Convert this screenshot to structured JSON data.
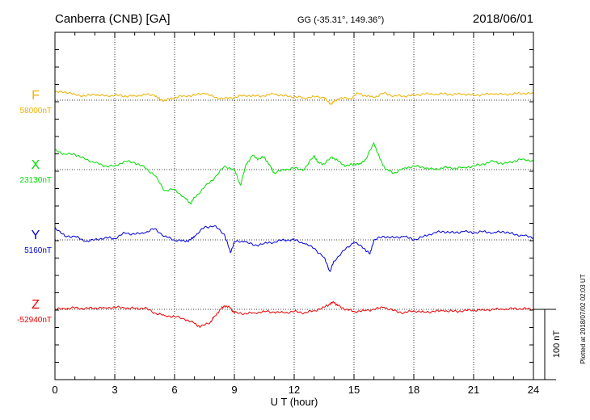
{
  "header": {
    "station": "Canberra (CNB)  [GA]",
    "coords": "GG (-35.31°, 149.36°)",
    "date": "2018/06/01"
  },
  "side_note": "Plotted at 2018/07/02 02:03 UT",
  "chart_data": {
    "type": "line",
    "xlabel": "U T (hour)",
    "xlim": [
      0,
      24
    ],
    "xticks": [
      "0",
      "3",
      "6",
      "9",
      "12",
      "15",
      "18",
      "21",
      "24"
    ],
    "scale_bar": "100 nT",
    "grid": true,
    "series": [
      {
        "name": "F",
        "baseline_label": "58000nT",
        "color": "#f0b000",
        "x": [
          0,
          0.5,
          1,
          1.5,
          2,
          2.5,
          3,
          3.5,
          4,
          4.5,
          5,
          5.3,
          5.6,
          6,
          6.5,
          7,
          7.5,
          8,
          8.5,
          9,
          9.5,
          10,
          10.5,
          11,
          11.5,
          12,
          12.5,
          13,
          13.5,
          13.8,
          14,
          14.3,
          14.8,
          15.2,
          15.6,
          16,
          16.5,
          17,
          17.5,
          18,
          18.5,
          19,
          19.5,
          20,
          20.5,
          21,
          21.5,
          22,
          22.5,
          23,
          23.5,
          24
        ],
        "values": [
          11,
          12,
          8,
          6,
          8,
          6,
          7,
          6,
          6,
          8,
          7,
          0,
          0,
          4,
          6,
          7,
          10,
          4,
          2,
          4,
          7,
          6,
          6,
          9,
          6,
          5,
          3,
          5,
          4,
          -6,
          -2,
          3,
          2,
          10,
          6,
          4,
          10,
          6,
          6,
          7,
          9,
          8,
          9,
          8,
          9,
          7,
          8,
          9,
          8,
          9,
          10,
          9
        ]
      },
      {
        "name": "X",
        "baseline_label": "23130nT",
        "color": "#00dd00",
        "x": [
          0,
          0.5,
          1,
          1.5,
          2,
          2.5,
          3,
          3.5,
          4,
          4.5,
          5,
          5.5,
          6,
          6.5,
          6.8,
          7,
          7.5,
          8,
          8.5,
          9,
          9.3,
          9.6,
          9.9,
          10.2,
          10.5,
          10.8,
          11,
          11.5,
          12,
          12.5,
          13,
          13.2,
          13.5,
          13.9,
          14.2,
          14.6,
          15,
          15.3,
          15.6,
          16,
          16.3,
          16.6,
          17,
          17.5,
          18,
          18.5,
          19,
          19.5,
          20,
          20.5,
          21,
          21.5,
          22,
          22.5,
          23,
          23.5,
          24
        ],
        "values": [
          28,
          22,
          22,
          15,
          10,
          5,
          5,
          12,
          10,
          3,
          -8,
          -30,
          -28,
          -40,
          -48,
          -40,
          -25,
          -12,
          5,
          0,
          -22,
          8,
          20,
          15,
          18,
          5,
          -5,
          0,
          2,
          0,
          20,
          10,
          8,
          18,
          12,
          5,
          8,
          8,
          15,
          38,
          15,
          0,
          -5,
          2,
          5,
          3,
          0,
          3,
          2,
          3,
          5,
          8,
          12,
          8,
          12,
          15,
          12
        ]
      },
      {
        "name": "Y",
        "baseline_label": "5160nT",
        "color": "#0000dd",
        "x": [
          0,
          0.5,
          1,
          1.5,
          2,
          2.5,
          3,
          3.5,
          4,
          4.5,
          5,
          5.5,
          6,
          6.5,
          6.8,
          7,
          7.5,
          8,
          8.5,
          8.8,
          9,
          9.5,
          10,
          10.5,
          11,
          11.5,
          12,
          12.5,
          13,
          13.5,
          13.8,
          14,
          14.5,
          15,
          15.5,
          15.8,
          16,
          16.5,
          17,
          17.5,
          18,
          18.5,
          19,
          19.5,
          20,
          20.5,
          21,
          21.5,
          22,
          22.5,
          23,
          23.5,
          24
        ],
        "values": [
          18,
          5,
          5,
          -2,
          0,
          3,
          2,
          10,
          8,
          10,
          16,
          5,
          0,
          -2,
          0,
          5,
          18,
          20,
          8,
          -18,
          -3,
          -2,
          -8,
          -5,
          -3,
          0,
          0,
          -5,
          -12,
          -25,
          -45,
          -30,
          -15,
          -3,
          -12,
          -20,
          0,
          5,
          3,
          5,
          0,
          5,
          10,
          12,
          10,
          12,
          10,
          12,
          10,
          12,
          8,
          6,
          3
        ]
      },
      {
        "name": "Z",
        "baseline_label": "-52940nT",
        "color": "#ee0000",
        "x": [
          0,
          0.5,
          1,
          1.5,
          2,
          2.5,
          3,
          3.5,
          4,
          4.5,
          5,
          5.5,
          6,
          6.5,
          7,
          7.3,
          7.8,
          8,
          8.3,
          8.5,
          8.8,
          9,
          9.5,
          10,
          10.5,
          11,
          11.5,
          12,
          12.5,
          13,
          13.5,
          13.8,
          14,
          14.2,
          14.6,
          15,
          15.5,
          16,
          16.5,
          17,
          17.5,
          18,
          18.5,
          19,
          19.5,
          20,
          20.5,
          21,
          21.5,
          22,
          22.5,
          23,
          23.5,
          24
        ],
        "values": [
          0,
          1,
          2,
          1,
          2,
          2,
          3,
          2,
          1,
          2,
          -5,
          -9,
          -10,
          -14,
          -20,
          -25,
          -18,
          -10,
          0,
          5,
          2,
          -5,
          -6,
          -5,
          -3,
          -4,
          -5,
          -3,
          -5,
          -2,
          3,
          8,
          10,
          5,
          0,
          -3,
          -2,
          0,
          3,
          -2,
          -5,
          -2,
          -4,
          -3,
          -2,
          -3,
          -2,
          -1,
          -1,
          0,
          0,
          1,
          1,
          0
        ]
      }
    ]
  }
}
